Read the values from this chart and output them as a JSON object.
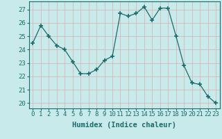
{
  "x": [
    0,
    1,
    2,
    3,
    4,
    5,
    6,
    7,
    8,
    9,
    10,
    11,
    12,
    13,
    14,
    15,
    16,
    17,
    18,
    19,
    20,
    21,
    22,
    23
  ],
  "y": [
    24.5,
    25.8,
    25.0,
    24.3,
    24.0,
    23.1,
    22.2,
    22.2,
    22.5,
    23.2,
    23.5,
    26.7,
    26.5,
    26.7,
    27.2,
    26.2,
    27.1,
    27.1,
    25.0,
    22.8,
    21.5,
    21.4,
    20.5,
    20.0
  ],
  "line_color": "#1a6b6b",
  "marker": "+",
  "marker_size": 4,
  "bg_color": "#c8eaea",
  "grid_color": "#d4b8b8",
  "xlabel": "Humidex (Indice chaleur)",
  "ylabel_ticks": [
    20,
    21,
    22,
    23,
    24,
    25,
    26,
    27
  ],
  "xticks": [
    0,
    1,
    2,
    3,
    4,
    5,
    6,
    7,
    8,
    9,
    10,
    11,
    12,
    13,
    14,
    15,
    16,
    17,
    18,
    19,
    20,
    21,
    22,
    23
  ],
  "ylim": [
    19.6,
    27.6
  ],
  "xlim": [
    -0.5,
    23.5
  ],
  "xlabel_fontsize": 7.5,
  "tick_fontsize": 6.5
}
